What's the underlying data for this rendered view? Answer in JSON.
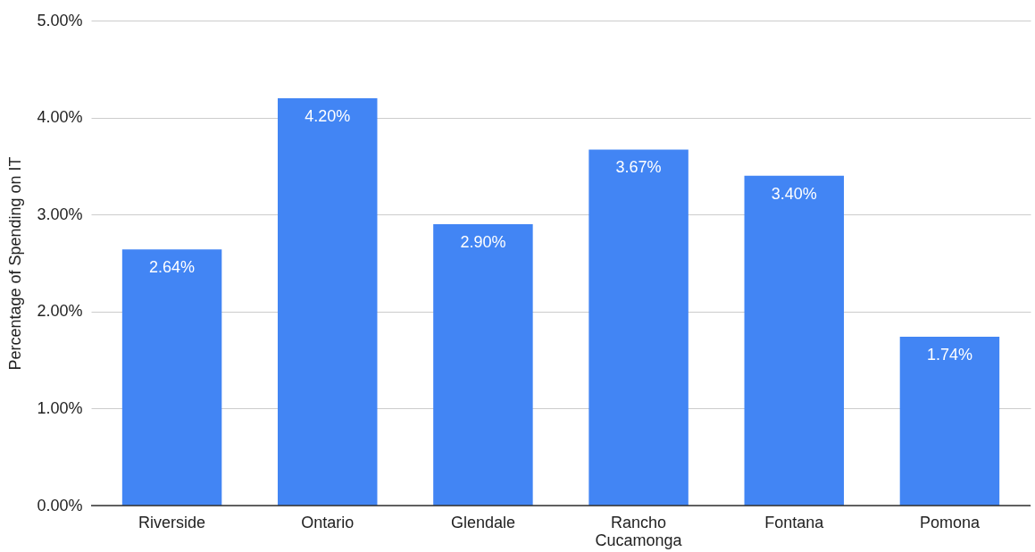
{
  "chart_data": {
    "type": "bar",
    "ylabel": "Percentage of Spending on IT",
    "categories": [
      "Riverside",
      "Ontario",
      "Glendale",
      "Rancho Cucamonga",
      "Fontana",
      "Pomona"
    ],
    "values": [
      2.64,
      4.2,
      2.9,
      3.67,
      3.4,
      1.74
    ],
    "value_labels": [
      "2.64%",
      "4.20%",
      "2.90%",
      "3.67%",
      "3.40%",
      "1.74%"
    ],
    "color": "#4285f4",
    "ylim": [
      0,
      5
    ],
    "yticks": [
      {
        "value": 0,
        "label": "0.00%"
      },
      {
        "value": 1,
        "label": "1.00%"
      },
      {
        "value": 2,
        "label": "2.00%"
      },
      {
        "value": 3,
        "label": "3.00%"
      },
      {
        "value": 4,
        "label": "4.00%"
      },
      {
        "value": 5,
        "label": "5.00%"
      }
    ],
    "grid": "y"
  }
}
